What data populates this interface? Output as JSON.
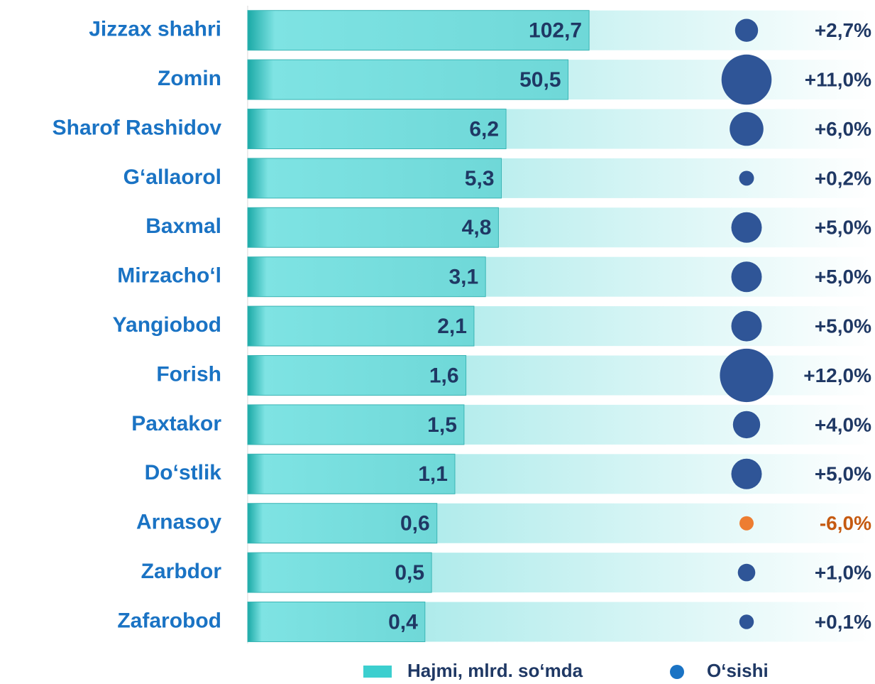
{
  "chart_data": {
    "type": "bar_bubble",
    "categories": [
      "Jizzax  shahri",
      "Zomin",
      "Sharof Rashidov",
      "G‘allaorol",
      "Baxmal",
      "Mirzacho‘l",
      "Yangiobod",
      "Forish",
      "Paxtakor",
      "Do‘stlik",
      "Arnasoy",
      "Zarbdor",
      "Zafarobod"
    ],
    "series": [
      {
        "name": "Hajmi, mlrd. so‘mda",
        "color": "#3ccfcf",
        "values": [
          102.7,
          50.5,
          6.2,
          5.3,
          4.8,
          3.1,
          2.1,
          1.6,
          1.5,
          1.1,
          0.6,
          0.5,
          0.4
        ],
        "value_labels": [
          "102,7",
          "50,5",
          "6,2",
          "5,3",
          "4,8",
          "3,1",
          "2,1",
          "1,6",
          "1,5",
          "1,1",
          "0,6",
          "0,5",
          "0,4"
        ]
      },
      {
        "name": "O‘sishi",
        "color": "#2f5597",
        "negative_color": "#ed7d31",
        "values": [
          2.7,
          11.0,
          6.0,
          0.2,
          5.0,
          5.0,
          5.0,
          12.0,
          4.0,
          5.0,
          -6.0,
          1.0,
          0.1
        ],
        "value_labels": [
          "+2,7%",
          "+11,0%",
          "+6,0%",
          "+0,2%",
          "+5,0%",
          "+5,0%",
          "+5,0%",
          "+12,0%",
          "+4,0%",
          "+5,0%",
          "-6,0%",
          "+1,0%",
          "+0,1%"
        ]
      }
    ],
    "xlim": [
      0.001,
      1000
    ],
    "log_scale": true
  }
}
